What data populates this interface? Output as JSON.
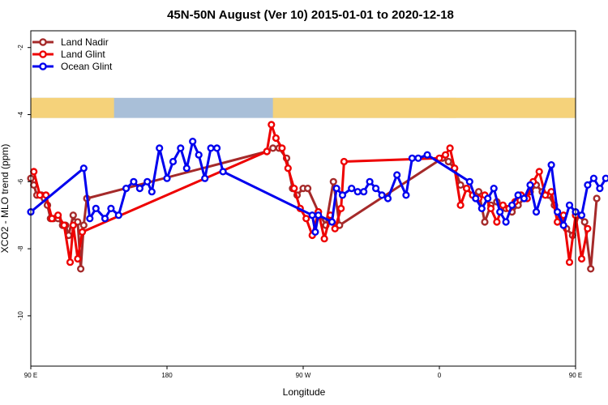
{
  "chart_data": {
    "type": "line",
    "title": "45N-50N August (Ver 10)   2015-01-01 to 2020-12-18",
    "xlabel": "Longitude",
    "ylabel": "XCO2 - MLO trend (ppm)",
    "xlim": [
      90,
      450
    ],
    "ylim": [
      -11.5,
      -1.5
    ],
    "x_ticks": [
      {
        "value": 90,
        "label": "90 E"
      },
      {
        "value": 180,
        "label": "180"
      },
      {
        "value": 270,
        "label": "90 W"
      },
      {
        "value": 360,
        "label": "0"
      },
      {
        "value": 450,
        "label": "90 E"
      },
      {
        "value": 540,
        "label": "180"
      }
    ],
    "y_ticks": [
      {
        "value": -2,
        "label": "-2"
      },
      {
        "value": -4,
        "label": "-4"
      },
      {
        "value": -6,
        "label": "-6"
      },
      {
        "value": -8,
        "label": "-8"
      },
      {
        "value": -10,
        "label": "-10"
      }
    ],
    "legend_position": "top-left",
    "grid": false,
    "land_ocean_band": {
      "y_range": [
        -4.1,
        -3.5
      ],
      "land_color": "#F5D27A",
      "ocean_color": "#A9BFD8",
      "land_segments": [
        [
          90,
          145
        ],
        [
          250,
          371
        ],
        [
          360,
          498
        ]
      ]
    },
    "series": [
      {
        "name": "Land Nadir",
        "color": "#A52A2A",
        "points": [
          [
            90,
            -5.9
          ],
          [
            92,
            -6.1
          ],
          [
            94,
            -6.4
          ],
          [
            97,
            -6.4
          ],
          [
            99,
            -6.5
          ],
          [
            101,
            -6.7
          ],
          [
            103,
            -7.1
          ],
          [
            105,
            -7.1
          ],
          [
            108,
            -7.1
          ],
          [
            111,
            -7.3
          ],
          [
            113,
            -7.3
          ],
          [
            115,
            -7.6
          ],
          [
            118,
            -7.0
          ],
          [
            119,
            -7.2
          ],
          [
            121,
            -7.2
          ],
          [
            123,
            -8.6
          ],
          [
            125,
            -7.3
          ],
          [
            127,
            -6.5
          ],
          [
            246,
            -5.1
          ],
          [
            250,
            -5.0
          ],
          [
            254,
            -5.0
          ],
          [
            259,
            -5.3
          ],
          [
            263,
            -6.2
          ],
          [
            266,
            -6.4
          ],
          [
            270,
            -6.2
          ],
          [
            273,
            -6.2
          ],
          [
            280,
            -6.9
          ],
          [
            285,
            -7.3
          ],
          [
            290,
            -6.0
          ],
          [
            294,
            -7.3
          ],
          [
            362,
            -5.3
          ],
          [
            366,
            -5.4
          ],
          [
            370,
            -5.6
          ],
          [
            374,
            -6.1
          ],
          [
            378,
            -6.2
          ],
          [
            382,
            -6.4
          ],
          [
            386,
            -6.3
          ],
          [
            390,
            -7.2
          ],
          [
            394,
            -6.7
          ],
          [
            398,
            -6.6
          ],
          [
            404,
            -6.8
          ],
          [
            408,
            -6.9
          ],
          [
            412,
            -6.7
          ],
          [
            416,
            -6.5
          ],
          [
            420,
            -6.3
          ],
          [
            424,
            -6.1
          ],
          [
            428,
            -6.3
          ],
          [
            432,
            -6.4
          ],
          [
            436,
            -6.7
          ],
          [
            440,
            -7.1
          ],
          [
            444,
            -7.4
          ],
          [
            448,
            -7.6
          ],
          [
            452,
            -7.0
          ],
          [
            456,
            -7.2
          ],
          [
            460,
            -8.6
          ],
          [
            464,
            -6.5
          ]
        ]
      },
      {
        "name": "Land Glint",
        "color": "#EE0000",
        "points": [
          [
            92,
            -5.7
          ],
          [
            96,
            -6.4
          ],
          [
            100,
            -6.4
          ],
          [
            104,
            -7.1
          ],
          [
            108,
            -7.0
          ],
          [
            112,
            -7.3
          ],
          [
            116,
            -8.4
          ],
          [
            118,
            -7.3
          ],
          [
            121,
            -8.3
          ],
          [
            124,
            -7.5
          ],
          [
            246,
            -5.1
          ],
          [
            249,
            -4.3
          ],
          [
            252,
            -4.7
          ],
          [
            256,
            -5.0
          ],
          [
            260,
            -5.6
          ],
          [
            264,
            -6.2
          ],
          [
            268,
            -6.8
          ],
          [
            272,
            -7.1
          ],
          [
            276,
            -7.6
          ],
          [
            280,
            -6.9
          ],
          [
            284,
            -7.7
          ],
          [
            288,
            -7.0
          ],
          [
            291,
            -7.4
          ],
          [
            295,
            -6.8
          ],
          [
            297,
            -5.4
          ],
          [
            360,
            -5.3
          ],
          [
            364,
            -5.2
          ],
          [
            367,
            -5.0
          ],
          [
            370,
            -5.6
          ],
          [
            374,
            -6.7
          ],
          [
            378,
            -6.2
          ],
          [
            382,
            -6.4
          ],
          [
            386,
            -6.5
          ],
          [
            390,
            -6.4
          ],
          [
            394,
            -6.8
          ],
          [
            398,
            -7.2
          ],
          [
            402,
            -6.7
          ],
          [
            406,
            -6.8
          ],
          [
            410,
            -6.6
          ],
          [
            414,
            -6.4
          ],
          [
            418,
            -6.5
          ],
          [
            422,
            -6.0
          ],
          [
            426,
            -5.7
          ],
          [
            430,
            -6.4
          ],
          [
            434,
            -6.3
          ],
          [
            438,
            -7.2
          ],
          [
            442,
            -7.0
          ],
          [
            446,
            -8.4
          ],
          [
            450,
            -7.0
          ],
          [
            454,
            -8.3
          ],
          [
            458,
            -7.4
          ]
        ]
      },
      {
        "name": "Ocean Glint",
        "color": "#0000EE",
        "points": [
          [
            90,
            -6.9
          ],
          [
            125,
            -5.6
          ],
          [
            129,
            -7.1
          ],
          [
            133,
            -6.8
          ],
          [
            139,
            -7.1
          ],
          [
            143,
            -6.8
          ],
          [
            148,
            -7.0
          ],
          [
            153,
            -6.2
          ],
          [
            158,
            -6.0
          ],
          [
            162,
            -6.2
          ],
          [
            167,
            -6.0
          ],
          [
            170,
            -6.3
          ],
          [
            175,
            -5.0
          ],
          [
            180,
            -5.9
          ],
          [
            184,
            -5.4
          ],
          [
            189,
            -5.0
          ],
          [
            193,
            -5.6
          ],
          [
            197,
            -4.8
          ],
          [
            201,
            -5.2
          ],
          [
            205,
            -5.9
          ],
          [
            209,
            -5.0
          ],
          [
            213,
            -5.0
          ],
          [
            217,
            -5.7
          ],
          [
            276,
            -7.0
          ],
          [
            278,
            -7.5
          ],
          [
            280,
            -7.0
          ],
          [
            289,
            -7.2
          ],
          [
            292,
            -6.2
          ],
          [
            296,
            -6.4
          ],
          [
            302,
            -6.2
          ],
          [
            306,
            -6.3
          ],
          [
            310,
            -6.3
          ],
          [
            314,
            -6.0
          ],
          [
            318,
            -6.2
          ],
          [
            322,
            -6.4
          ],
          [
            326,
            -6.5
          ],
          [
            332,
            -5.8
          ],
          [
            338,
            -6.4
          ],
          [
            342,
            -5.3
          ],
          [
            346,
            -5.3
          ],
          [
            352,
            -5.2
          ],
          [
            380,
            -6.0
          ],
          [
            384,
            -6.5
          ],
          [
            388,
            -6.8
          ],
          [
            392,
            -6.5
          ],
          [
            396,
            -6.2
          ],
          [
            400,
            -6.9
          ],
          [
            404,
            -7.2
          ],
          [
            408,
            -6.7
          ],
          [
            412,
            -6.4
          ],
          [
            416,
            -6.5
          ],
          [
            420,
            -6.1
          ],
          [
            424,
            -6.9
          ],
          [
            434,
            -5.5
          ],
          [
            438,
            -6.9
          ],
          [
            442,
            -7.3
          ],
          [
            446,
            -6.7
          ],
          [
            450,
            -6.9
          ],
          [
            454,
            -7.0
          ],
          [
            458,
            -6.1
          ],
          [
            462,
            -5.9
          ],
          [
            466,
            -6.2
          ],
          [
            470,
            -5.9
          ]
        ]
      }
    ]
  }
}
